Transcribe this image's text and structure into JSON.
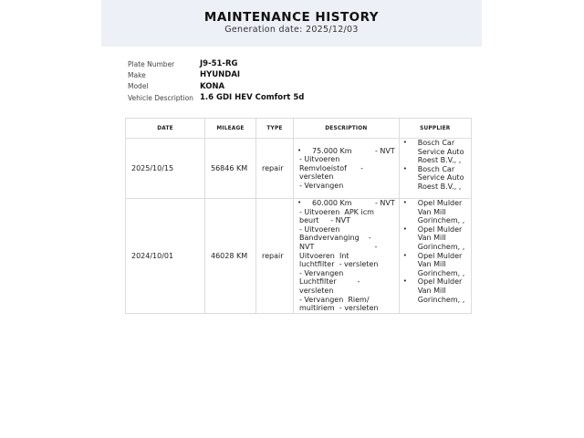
{
  "header": {
    "title": "MAINTENANCE HISTORY",
    "subtitle": "Generation date: 2025/12/03"
  },
  "vehicle": [
    {
      "label": "Plate Number",
      "value": "J9-51-RG"
    },
    {
      "label": "Make",
      "value": "HYUNDAI"
    },
    {
      "label": "Model",
      "value": "KONA"
    },
    {
      "label": "Vehicle Description",
      "value": "1.6 GDI HEV Comfort 5d"
    }
  ],
  "table": {
    "columns": [
      "DATE",
      "MILEAGE",
      "TYPE",
      "DESCRIPTION",
      "SUPPLIER"
    ],
    "rows": [
      {
        "date": "2025/10/15",
        "mileage": "56846 KM",
        "type": "repair",
        "description": [
          [
            "75.000 Km          - NVT",
            "- Uitvoeren",
            "Remvloeistof      -",
            "versleten",
            "- Vervangen"
          ]
        ],
        "supplier": [
          [
            "Bosch Car",
            "Service Auto",
            "Roest B.V., ,"
          ],
          [
            "Bosch Car",
            "Service Auto",
            "Roest B.V., ,"
          ]
        ]
      },
      {
        "date": "2024/10/01",
        "mileage": "46028 KM",
        "type": "repair",
        "description": [
          [
            "60.000 Km          - NVT",
            "- Uitvoeren  APK icm",
            "beurt     - NVT",
            "- Uitvoeren",
            "Bandvervanging    -",
            "NVT                          -",
            "Uitvoeren  Int",
            "luchtfilter  - versleten",
            "- Vervangen",
            "Luchtfilter         -",
            "versleten",
            "- Vervangen  Riem/",
            "multiriem  - versleten"
          ]
        ],
        "supplier": [
          [
            "Opel Mulder",
            "Van Mill",
            "Gorinchem, ,"
          ],
          [
            "Opel Mulder",
            "Van Mill",
            "Gorinchem, ,"
          ],
          [
            "Opel Mulder",
            "Van Mill",
            "Gorinchem, ,"
          ],
          [
            "Opel Mulder",
            "Van Mill",
            "Gorinchem, ,"
          ]
        ]
      }
    ]
  }
}
